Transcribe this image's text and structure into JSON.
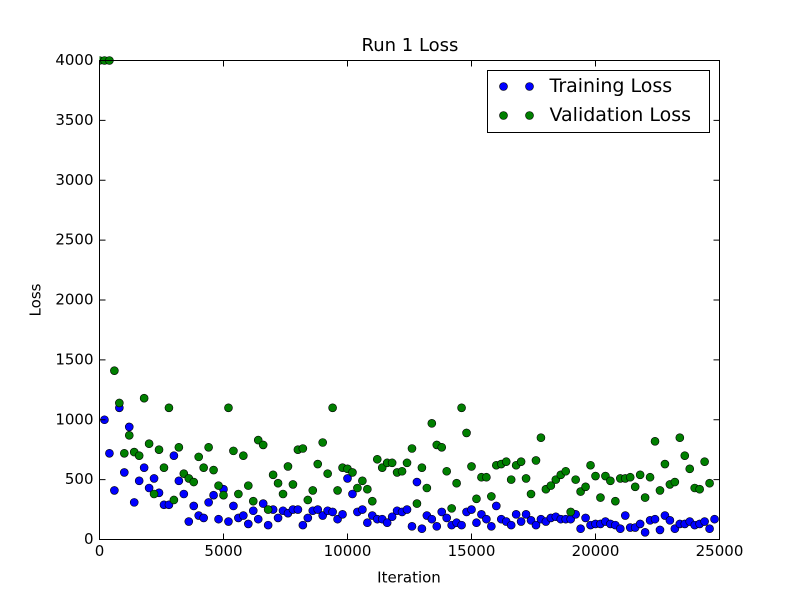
{
  "chart_data": {
    "type": "scatter",
    "title": "Run 1 Loss",
    "x_label": "Iteration",
    "y_label": "Loss",
    "xlim": [
      0,
      25000
    ],
    "ylim": [
      0,
      4000
    ],
    "xticks": [
      0,
      5000,
      10000,
      15000,
      20000,
      25000
    ],
    "yticks": [
      0,
      500,
      1000,
      1500,
      2000,
      2500,
      3000,
      3500,
      4000
    ],
    "legend": "upper right",
    "series": [
      {
        "name": "Training Loss",
        "color": "#0000ff",
        "x": [
          200,
          400,
          600,
          800,
          1000,
          1200,
          1400,
          1600,
          1800,
          2000,
          2200,
          2400,
          2600,
          2800,
          3000,
          3200,
          3400,
          3600,
          3800,
          4000,
          4200,
          4400,
          4600,
          4800,
          5000,
          5200,
          5400,
          5600,
          5800,
          6000,
          6200,
          6400,
          6600,
          6800,
          7000,
          7200,
          7400,
          7600,
          7800,
          8000,
          8200,
          8400,
          8600,
          8800,
          9000,
          9200,
          9400,
          9600,
          9800,
          10000,
          10200,
          10400,
          10600,
          10800,
          11000,
          11200,
          11400,
          11600,
          11800,
          12000,
          12200,
          12400,
          12600,
          12800,
          13000,
          13200,
          13400,
          13600,
          13800,
          14000,
          14200,
          14400,
          14600,
          14800,
          15000,
          15200,
          15400,
          15600,
          15800,
          16000,
          16200,
          16400,
          16600,
          16800,
          17000,
          17200,
          17400,
          17600,
          17800,
          18000,
          18200,
          18400,
          18600,
          18800,
          19000,
          19200,
          19400,
          19600,
          19800,
          20000,
          20200,
          20400,
          20600,
          20800,
          21000,
          21200,
          21400,
          21600,
          21800,
          22000,
          22200,
          22400,
          22600,
          22800,
          23000,
          23200,
          23400,
          23600,
          23800,
          24000,
          24200,
          24400,
          24600,
          24800
        ],
        "values": [
          1000,
          720,
          410,
          1100,
          560,
          940,
          310,
          490,
          600,
          430,
          510,
          390,
          290,
          290,
          700,
          490,
          380,
          150,
          280,
          200,
          180,
          310,
          370,
          170,
          420,
          150,
          280,
          180,
          200,
          130,
          240,
          170,
          300,
          120,
          250,
          180,
          240,
          220,
          250,
          250,
          120,
          180,
          240,
          250,
          200,
          240,
          230,
          170,
          210,
          510,
          380,
          230,
          250,
          140,
          200,
          170,
          170,
          140,
          190,
          240,
          230,
          250,
          110,
          480,
          90,
          200,
          170,
          110,
          230,
          180,
          120,
          140,
          120,
          230,
          250,
          140,
          210,
          170,
          110,
          280,
          170,
          150,
          120,
          210,
          150,
          210,
          160,
          120,
          170,
          150,
          180,
          190,
          170,
          170,
          170,
          210,
          90,
          180,
          120,
          130,
          130,
          150,
          130,
          120,
          90,
          200,
          100,
          100,
          130,
          60,
          160,
          170,
          80,
          200,
          160,
          90,
          130,
          130,
          150,
          120,
          130,
          150,
          90,
          170
        ]
      },
      {
        "name": "Validation Loss",
        "color": "#007f00",
        "x": [
          0,
          200,
          400,
          600,
          800,
          1000,
          1200,
          1400,
          1600,
          1800,
          2000,
          2200,
          2400,
          2600,
          2800,
          3000,
          3200,
          3400,
          3600,
          3800,
          4000,
          4200,
          4400,
          4600,
          4800,
          5000,
          5200,
          5400,
          5600,
          5800,
          6000,
          6200,
          6400,
          6600,
          6800,
          7000,
          7200,
          7400,
          7600,
          7800,
          8000,
          8200,
          8400,
          8600,
          8800,
          9000,
          9200,
          9400,
          9600,
          9800,
          10000,
          10200,
          10400,
          10600,
          10800,
          11000,
          11200,
          11400,
          11600,
          11800,
          12000,
          12200,
          12400,
          12600,
          12800,
          13000,
          13200,
          13400,
          13600,
          13800,
          14000,
          14200,
          14400,
          14600,
          14800,
          15000,
          15200,
          15400,
          15600,
          15800,
          16000,
          16200,
          16400,
          16600,
          16800,
          17000,
          17200,
          17400,
          17600,
          17800,
          18000,
          18200,
          18400,
          18600,
          18800,
          19000,
          19200,
          19400,
          19600,
          19800,
          20000,
          20200,
          20400,
          20600,
          20800,
          21000,
          21200,
          21400,
          21600,
          21800,
          22000,
          22200,
          22400,
          22600,
          22800,
          23000,
          23200,
          23400,
          23600,
          23800,
          24000,
          24200,
          24400,
          24600
        ],
        "values": [
          4000,
          4000,
          4000,
          1410,
          1140,
          720,
          870,
          730,
          700,
          1180,
          800,
          380,
          750,
          600,
          1100,
          330,
          770,
          550,
          510,
          480,
          690,
          600,
          770,
          580,
          450,
          370,
          1100,
          740,
          380,
          700,
          450,
          320,
          830,
          790,
          250,
          540,
          470,
          380,
          610,
          460,
          750,
          760,
          330,
          410,
          630,
          810,
          550,
          1100,
          410,
          600,
          590,
          560,
          430,
          490,
          420,
          320,
          670,
          600,
          640,
          640,
          560,
          570,
          640,
          760,
          300,
          600,
          430,
          970,
          790,
          770,
          570,
          260,
          470,
          1100,
          890,
          610,
          340,
          520,
          520,
          360,
          620,
          630,
          650,
          500,
          620,
          650,
          510,
          380,
          660,
          850,
          420,
          450,
          500,
          540,
          570,
          230,
          500,
          400,
          440,
          620,
          530,
          350,
          530,
          490,
          320,
          510,
          510,
          520,
          440,
          540,
          350,
          520,
          820,
          410,
          630,
          460,
          480,
          850,
          700,
          590,
          430,
          420,
          650,
          470
        ]
      }
    ]
  }
}
